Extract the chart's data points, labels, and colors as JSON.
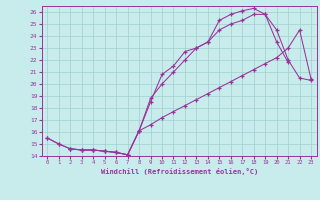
{
  "xlabel": "Windchill (Refroidissement éolien,°C)",
  "xlim": [
    -0.5,
    23.5
  ],
  "ylim": [
    14,
    26.5
  ],
  "xticks": [
    0,
    1,
    2,
    3,
    4,
    5,
    6,
    7,
    8,
    9,
    10,
    11,
    12,
    13,
    14,
    15,
    16,
    17,
    18,
    19,
    20,
    21,
    22,
    23
  ],
  "yticks": [
    14,
    15,
    16,
    17,
    18,
    19,
    20,
    21,
    22,
    23,
    24,
    25,
    26
  ],
  "background_color": "#c8ecec",
  "grid_color": "#a0cece",
  "line_color": "#993399",
  "line1_x": [
    0,
    1,
    2,
    3,
    4,
    5,
    6,
    7,
    8,
    9,
    10,
    11,
    12,
    13,
    14,
    15,
    16,
    17,
    18,
    19,
    20,
    21
  ],
  "line1_y": [
    15.5,
    15.0,
    14.6,
    14.5,
    14.5,
    14.4,
    14.3,
    14.1,
    16.1,
    18.5,
    20.8,
    21.5,
    22.7,
    23.0,
    23.5,
    25.3,
    25.8,
    26.1,
    26.3,
    25.8,
    23.5,
    21.8
  ],
  "line2_x": [
    2,
    3,
    4,
    5,
    6,
    7,
    8,
    9,
    10,
    11,
    12,
    13,
    14,
    15,
    16,
    17,
    18,
    19,
    20,
    21,
    22,
    23
  ],
  "line2_y": [
    14.6,
    14.5,
    14.5,
    14.4,
    14.3,
    14.1,
    16.1,
    18.8,
    20.0,
    21.0,
    22.0,
    23.0,
    23.5,
    24.5,
    25.0,
    25.3,
    25.8,
    25.8,
    24.5,
    22.0,
    20.5,
    20.3
  ],
  "line3_x": [
    0,
    1,
    2,
    3,
    4,
    5,
    6,
    7,
    8,
    9,
    10,
    11,
    12,
    13,
    14,
    15,
    16,
    17,
    18,
    19,
    20,
    21,
    22,
    23
  ],
  "line3_y": [
    15.5,
    15.0,
    14.6,
    14.5,
    14.5,
    14.4,
    14.3,
    14.1,
    16.1,
    16.6,
    17.2,
    17.7,
    18.2,
    18.7,
    19.2,
    19.7,
    20.2,
    20.7,
    21.2,
    21.7,
    22.2,
    23.0,
    24.5,
    20.4
  ]
}
